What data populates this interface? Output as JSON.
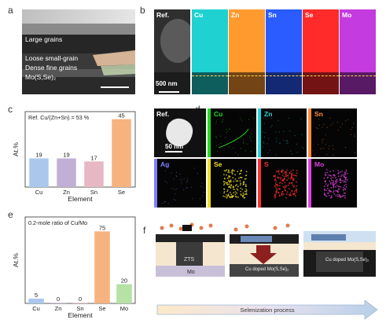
{
  "panels": {
    "a": {
      "label": "a",
      "texts": [
        "Large grains",
        "Loose small-grain",
        "Dense fine grains",
        "Mo(S,Se)₂"
      ]
    },
    "b": {
      "label": "b",
      "ref": "Ref.",
      "scale": "500 nm",
      "maps": [
        {
          "name": "Cu",
          "color": "#1fd1d1"
        },
        {
          "name": "Zn",
          "color": "#ff9a2e"
        },
        {
          "name": "Sn",
          "color": "#2a5cff"
        },
        {
          "name": "Se",
          "color": "#ff2a2a"
        },
        {
          "name": "Mo",
          "color": "#c43be0"
        }
      ]
    },
    "c": {
      "label": "c",
      "annotation": "Ref. Cu/(Zn+Sn) = 53 %"
    },
    "d": {
      "label": "d",
      "ref": "Ref.",
      "scale": "50 nm",
      "maps": [
        {
          "name": "Cu",
          "color": "#22dd22"
        },
        {
          "name": "Zn",
          "color": "#22d6d6"
        },
        {
          "name": "Sn",
          "color": "#ff8c3a"
        },
        {
          "name": "Ag",
          "color": "#7f7fff"
        },
        {
          "name": "Se",
          "color": "#f0e020"
        },
        {
          "name": "S",
          "color": "#ff3030"
        },
        {
          "name": "Mo",
          "color": "#e040e0"
        }
      ]
    },
    "e": {
      "label": "e",
      "annotation": "0.2-mole ratio of Cu/Mo"
    },
    "f": {
      "label": "f",
      "texts": [
        "ZTS",
        "Mo",
        "Cu doped Mo(S,Se)₂",
        "Cu doped Mo(S,Se)₂",
        "Selenization process"
      ]
    }
  },
  "chart_data": [
    {
      "type": "bar",
      "title": "",
      "xlabel": "Element",
      "ylabel": "At.%",
      "categories": [
        "Cu",
        "Zn",
        "Sn",
        "Se"
      ],
      "values": [
        19,
        19,
        17,
        45
      ],
      "colors": [
        "#a9c8ec",
        "#c0b0d6",
        "#e6b8c4",
        "#f7b37f"
      ],
      "ylim": [
        0,
        50
      ]
    },
    {
      "type": "bar",
      "title": "",
      "xlabel": "Element",
      "ylabel": "At.%",
      "categories": [
        "Cu",
        "Zn",
        "Sn",
        "Se",
        "Mo"
      ],
      "values": [
        5,
        0,
        0,
        75,
        20
      ],
      "colors": [
        "#a9c8ec",
        "#c0b0d6",
        "#e6b8c4",
        "#f7b37f",
        "#b6e2a5"
      ],
      "ylim": [
        0,
        90
      ]
    }
  ]
}
